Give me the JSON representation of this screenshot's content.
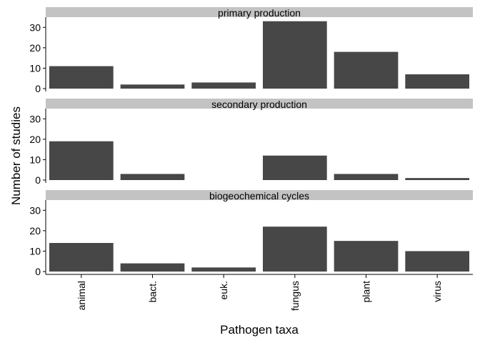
{
  "chart_data": {
    "type": "bar",
    "xlabel": "Pathogen taxa",
    "ylabel": "Number of studies",
    "categories": [
      "animal",
      "bact.",
      "euk.",
      "fungus",
      "plant",
      "virus"
    ],
    "ylim": [
      0,
      35
    ],
    "yticks": [
      0,
      10,
      20,
      30
    ],
    "grid": false,
    "bar_color": "#474747",
    "strip_color": "#c3c3c3",
    "facets": [
      {
        "name": "primary production",
        "values": [
          11,
          2,
          3,
          33,
          18,
          7
        ]
      },
      {
        "name": "secondary production",
        "values": [
          19,
          3,
          0,
          12,
          3,
          1
        ]
      },
      {
        "name": "biogeochemical cycles",
        "values": [
          14,
          4,
          2,
          22,
          15,
          10
        ]
      }
    ]
  }
}
